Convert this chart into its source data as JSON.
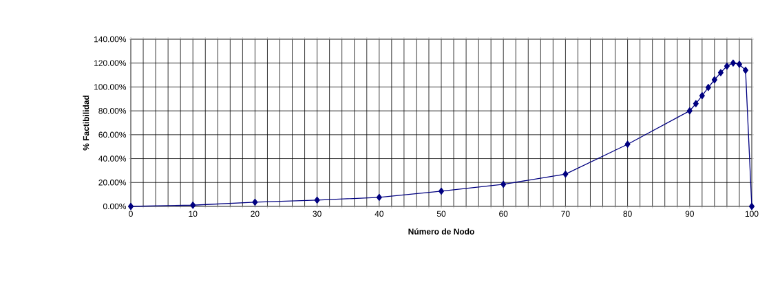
{
  "chart_data": {
    "type": "line",
    "xlabel": "Número de Nodo",
    "ylabel": "% Factibilidad",
    "x": [
      0,
      10,
      20,
      30,
      40,
      50,
      60,
      70,
      80,
      90,
      91,
      92,
      93,
      94,
      95,
      96,
      97,
      98,
      99,
      100
    ],
    "series": [
      {
        "color": "#000080",
        "values": [
          0,
          1,
          3.5,
          5.3,
          7.5,
          12.7,
          18.5,
          27,
          52,
          80,
          86,
          92.7,
          99.6,
          106,
          112,
          117.5,
          120,
          119,
          114,
          0
        ]
      }
    ],
    "marker": "diamond",
    "grid": true,
    "xlim": [
      0,
      100
    ],
    "ylim": [
      0,
      140
    ],
    "xticks": [
      0,
      {
        "value": 2,
        "label": null
      },
      {
        "value": 4,
        "label": null
      },
      {
        "value": 6,
        "label": null
      },
      {
        "value": 8,
        "label": null
      },
      10,
      {
        "value": 12,
        "label": null
      },
      {
        "value": 14,
        "label": null
      },
      {
        "value": 16,
        "label": null
      },
      {
        "value": 18,
        "label": null
      },
      20,
      {
        "value": 22,
        "label": null
      },
      {
        "value": 24,
        "label": null
      },
      {
        "value": 26,
        "label": null
      },
      {
        "value": 28,
        "label": null
      },
      30,
      {
        "value": 32,
        "label": null
      },
      {
        "value": 34,
        "label": null
      },
      {
        "value": 36,
        "label": null
      },
      {
        "value": 38,
        "label": null
      },
      40,
      {
        "value": 42,
        "label": null
      },
      {
        "value": 44,
        "label": null
      },
      {
        "value": 46,
        "label": null
      },
      {
        "value": 48,
        "label": null
      },
      50,
      {
        "value": 52,
        "label": null
      },
      {
        "value": 54,
        "label": null
      },
      {
        "value": 56,
        "label": null
      },
      {
        "value": 58,
        "label": null
      },
      60,
      {
        "value": 62,
        "label": null
      },
      {
        "value": 64,
        "label": null
      },
      {
        "value": 66,
        "label": null
      },
      {
        "value": 68,
        "label": null
      },
      70,
      {
        "value": 72,
        "label": null
      },
      {
        "value": 74,
        "label": null
      },
      {
        "value": 76,
        "label": null
      },
      {
        "value": 78,
        "label": null
      },
      80,
      {
        "value": 82,
        "label": null
      },
      {
        "value": 84,
        "label": null
      },
      {
        "value": 86,
        "label": null
      },
      {
        "value": 88,
        "label": null
      },
      90,
      {
        "value": 92,
        "label": null
      },
      {
        "value": 94,
        "label": null
      },
      {
        "value": 96,
        "label": null
      },
      {
        "value": 98,
        "label": null
      },
      100
    ],
    "yticks": [
      {
        "value": 0,
        "label": "0.00%"
      },
      {
        "value": 20,
        "label": "20.00%"
      },
      {
        "value": 40,
        "label": "40.00%"
      },
      {
        "value": 60,
        "label": "60.00%"
      },
      {
        "value": 80,
        "label": "80.00%"
      },
      {
        "value": 100,
        "label": "100.00%"
      },
      {
        "value": 120,
        "label": "120.00%"
      },
      {
        "value": 140,
        "label": "140.00%"
      }
    ]
  }
}
